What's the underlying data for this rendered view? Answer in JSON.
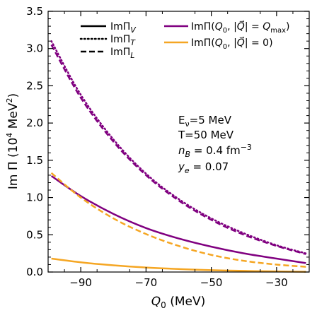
{
  "chart_data": {
    "type": "line",
    "xlabel": "Q₀ (MeV)",
    "ylabel": "Im Π (10⁴ MeV²)",
    "xlim": [
      -100,
      -20
    ],
    "ylim": [
      0,
      3.5
    ],
    "x_ticks": [
      -90,
      -70,
      -50,
      -30
    ],
    "y_ticks": [
      0.0,
      0.5,
      1.0,
      1.5,
      2.0,
      2.5,
      3.0,
      3.5
    ],
    "y_tick_labels": [
      "0.0",
      "0.5",
      "1.0",
      "1.5",
      "2.0",
      "2.5",
      "3.0",
      "3.5"
    ],
    "x_tick_labels": [
      "−90",
      "−70",
      "−50",
      "−30"
    ],
    "grid": false,
    "legend": {
      "placement": "top",
      "style_entries": [
        {
          "label": "ImΠV",
          "style": "solid"
        },
        {
          "label": "ImΠT",
          "style": "dotted"
        },
        {
          "label": "ImΠL",
          "style": "dashed"
        }
      ],
      "color_entries": [
        {
          "label": "ImΠ(Q0, |Q⃗| = Qmax)",
          "color": "#800080"
        },
        {
          "label": "ImΠ(Q0, |Q⃗| = 0)",
          "color": "#f5a623"
        }
      ]
    },
    "annotation": [
      "Eν=5 MeV",
      "T=50 MeV",
      "nB = 0.4 fm⁻³",
      "ye = 0.07"
    ],
    "series": [
      {
        "color": "#800080",
        "style": "solid",
        "x": [
          -99,
          -90,
          -80,
          -70,
          -60,
          -50,
          -40,
          -30,
          -21
        ],
        "y": [
          1.29,
          1.02,
          0.78,
          0.59,
          0.45,
          0.34,
          0.25,
          0.18,
          0.12
        ]
      },
      {
        "color": "#800080",
        "style": "dotted",
        "x": [
          -99,
          -90,
          -80,
          -70,
          -60,
          -50,
          -40,
          -30,
          -21
        ],
        "y": [
          3.1,
          2.38,
          1.78,
          1.32,
          0.98,
          0.72,
          0.52,
          0.36,
          0.25
        ]
      },
      {
        "color": "#800080",
        "style": "dashed",
        "x": [
          -99,
          -90,
          -80,
          -70,
          -60,
          -50,
          -40,
          -30,
          -21
        ],
        "y": [
          3.05,
          2.34,
          1.75,
          1.3,
          0.96,
          0.7,
          0.5,
          0.35,
          0.24
        ]
      },
      {
        "color": "#f5a623",
        "style": "solid",
        "x": [
          -99,
          -90,
          -80,
          -70,
          -60,
          -50,
          -40,
          -30,
          -21
        ],
        "y": [
          0.18,
          0.13,
          0.09,
          0.06,
          0.04,
          0.025,
          0.015,
          0.008,
          0.004
        ]
      },
      {
        "color": "#f5a623",
        "style": "dashed",
        "x": [
          -99,
          -90,
          -80,
          -70,
          -60,
          -50,
          -40,
          -30,
          -21
        ],
        "y": [
          1.33,
          1.0,
          0.72,
          0.51,
          0.35,
          0.23,
          0.15,
          0.1,
          0.07
        ]
      }
    ]
  }
}
